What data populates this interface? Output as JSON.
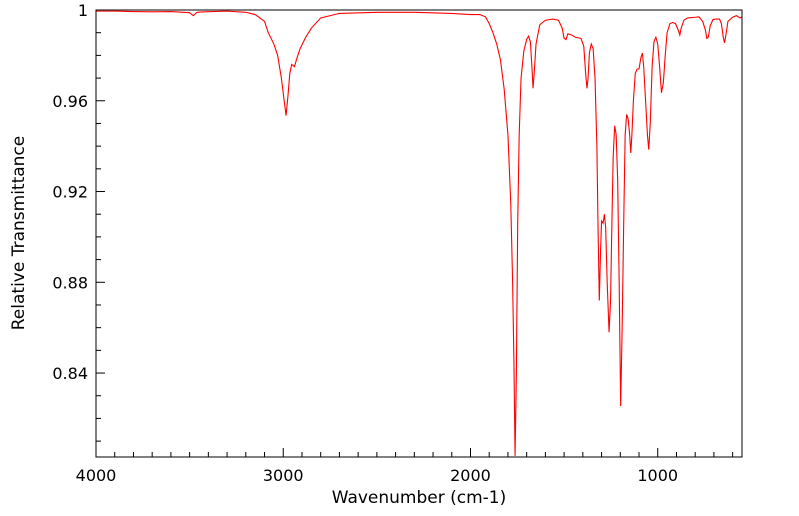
{
  "chart_data": {
    "type": "line",
    "xlabel": "Wavenumber (cm-1)",
    "ylabel": "Relative Transmittance",
    "xlim": [
      4000,
      550
    ],
    "ylim": [
      0.803,
      1.0
    ],
    "x_ticks": [
      4000,
      3000,
      2000,
      1000
    ],
    "x_tick_labels": [
      "4000",
      "3000",
      "2000",
      "1000"
    ],
    "y_ticks": [
      1.0,
      0.96,
      0.92,
      0.88,
      0.84
    ],
    "y_tick_labels": [
      "1",
      "0.96",
      "0.92",
      "0.88",
      "0.84"
    ],
    "x_reversed": true,
    "grid": false,
    "series": [
      {
        "color": "#ff0000",
        "points": [
          [
            4000,
            0.9995
          ],
          [
            3900,
            0.9995
          ],
          [
            3800,
            0.9993
          ],
          [
            3700,
            0.9992
          ],
          [
            3600,
            0.9993
          ],
          [
            3500,
            0.9988
          ],
          [
            3480,
            0.9975
          ],
          [
            3460,
            0.999
          ],
          [
            3420,
            0.9992
          ],
          [
            3300,
            0.9995
          ],
          [
            3200,
            0.999
          ],
          [
            3150,
            0.998
          ],
          [
            3100,
            0.995
          ],
          [
            3080,
            0.99
          ],
          [
            3050,
            0.985
          ],
          [
            3030,
            0.98
          ],
          [
            3010,
            0.97
          ],
          [
            2995,
            0.96
          ],
          [
            2985,
            0.9535
          ],
          [
            2975,
            0.962
          ],
          [
            2965,
            0.972
          ],
          [
            2955,
            0.976
          ],
          [
            2940,
            0.975
          ],
          [
            2930,
            0.978
          ],
          [
            2910,
            0.983
          ],
          [
            2880,
            0.988
          ],
          [
            2850,
            0.992
          ],
          [
            2800,
            0.9965
          ],
          [
            2700,
            0.9985
          ],
          [
            2500,
            0.999
          ],
          [
            2300,
            0.999
          ],
          [
            2100,
            0.9985
          ],
          [
            2000,
            0.998
          ],
          [
            1950,
            0.998
          ],
          [
            1920,
            0.997
          ],
          [
            1900,
            0.994
          ],
          [
            1880,
            0.99
          ],
          [
            1860,
            0.985
          ],
          [
            1840,
            0.978
          ],
          [
            1820,
            0.965
          ],
          [
            1800,
            0.945
          ],
          [
            1785,
            0.915
          ],
          [
            1775,
            0.88
          ],
          [
            1768,
            0.845
          ],
          [
            1762,
            0.8035
          ],
          [
            1755,
            0.84
          ],
          [
            1748,
            0.905
          ],
          [
            1740,
            0.945
          ],
          [
            1730,
            0.97
          ],
          [
            1715,
            0.982
          ],
          [
            1700,
            0.987
          ],
          [
            1690,
            0.9885
          ],
          [
            1680,
            0.986
          ],
          [
            1672,
            0.975
          ],
          [
            1666,
            0.9655
          ],
          [
            1660,
            0.972
          ],
          [
            1650,
            0.985
          ],
          [
            1630,
            0.9935
          ],
          [
            1600,
            0.9955
          ],
          [
            1560,
            0.996
          ],
          [
            1530,
            0.9955
          ],
          [
            1510,
            0.992
          ],
          [
            1500,
            0.9875
          ],
          [
            1490,
            0.987
          ],
          [
            1480,
            0.9895
          ],
          [
            1460,
            0.989
          ],
          [
            1440,
            0.988
          ],
          [
            1410,
            0.9875
          ],
          [
            1395,
            0.984
          ],
          [
            1385,
            0.972
          ],
          [
            1378,
            0.9655
          ],
          [
            1372,
            0.97
          ],
          [
            1365,
            0.981
          ],
          [
            1355,
            0.985
          ],
          [
            1345,
            0.983
          ],
          [
            1335,
            0.97
          ],
          [
            1325,
            0.94
          ],
          [
            1318,
            0.9
          ],
          [
            1312,
            0.872
          ],
          [
            1305,
            0.895
          ],
          [
            1300,
            0.907
          ],
          [
            1292,
            0.906
          ],
          [
            1285,
            0.91
          ],
          [
            1278,
            0.904
          ],
          [
            1270,
            0.88
          ],
          [
            1260,
            0.858
          ],
          [
            1252,
            0.872
          ],
          [
            1245,
            0.905
          ],
          [
            1238,
            0.935
          ],
          [
            1230,
            0.949
          ],
          [
            1222,
            0.945
          ],
          [
            1214,
            0.925
          ],
          [
            1206,
            0.88
          ],
          [
            1198,
            0.8255
          ],
          [
            1190,
            0.86
          ],
          [
            1182,
            0.905
          ],
          [
            1174,
            0.945
          ],
          [
            1166,
            0.954
          ],
          [
            1158,
            0.952
          ],
          [
            1150,
            0.945
          ],
          [
            1144,
            0.937
          ],
          [
            1138,
            0.945
          ],
          [
            1130,
            0.96
          ],
          [
            1120,
            0.972
          ],
          [
            1110,
            0.974
          ],
          [
            1100,
            0.974
          ],
          [
            1090,
            0.979
          ],
          [
            1082,
            0.981
          ],
          [
            1075,
            0.975
          ],
          [
            1065,
            0.96
          ],
          [
            1055,
            0.945
          ],
          [
            1048,
            0.9385
          ],
          [
            1040,
            0.95
          ],
          [
            1030,
            0.975
          ],
          [
            1020,
            0.986
          ],
          [
            1010,
            0.988
          ],
          [
            1000,
            0.985
          ],
          [
            990,
            0.975
          ],
          [
            980,
            0.9635
          ],
          [
            970,
            0.968
          ],
          [
            960,
            0.98
          ],
          [
            950,
            0.99
          ],
          [
            935,
            0.994
          ],
          [
            920,
            0.9945
          ],
          [
            905,
            0.994
          ],
          [
            890,
            0.991
          ],
          [
            882,
            0.989
          ],
          [
            875,
            0.992
          ],
          [
            860,
            0.9955
          ],
          [
            840,
            0.9965
          ],
          [
            800,
            0.9968
          ],
          [
            780,
            0.997
          ],
          [
            760,
            0.995
          ],
          [
            745,
            0.991
          ],
          [
            738,
            0.9875
          ],
          [
            730,
            0.988
          ],
          [
            720,
            0.993
          ],
          [
            705,
            0.9958
          ],
          [
            690,
            0.996
          ],
          [
            670,
            0.996
          ],
          [
            660,
            0.994
          ],
          [
            650,
            0.988
          ],
          [
            643,
            0.9855
          ],
          [
            636,
            0.989
          ],
          [
            625,
            0.995
          ],
          [
            600,
            0.9968
          ],
          [
            580,
            0.9975
          ],
          [
            560,
            0.9965
          ],
          [
            550,
            0.997
          ]
        ]
      }
    ]
  }
}
